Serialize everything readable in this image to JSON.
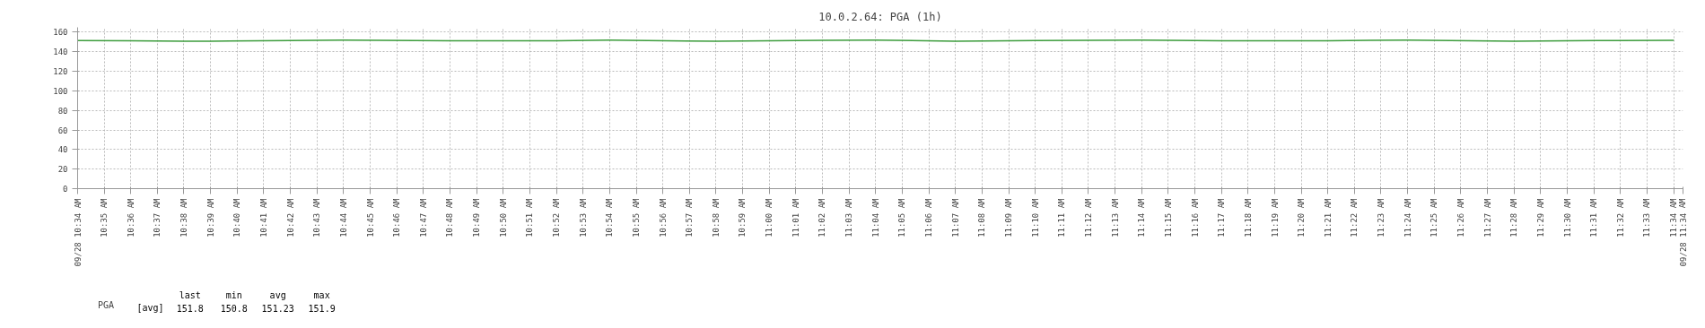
{
  "chart_data": {
    "type": "line",
    "title": "10.0.2.64: PGA (1h)",
    "x": [
      10.5667,
      10.6,
      10.6333,
      10.65,
      10.7,
      10.7333,
      10.8,
      10.8667,
      10.9,
      10.9667,
      11.0,
      11.0333,
      11.0667,
      11.1167,
      11.1667,
      11.2333,
      11.2833,
      11.35,
      11.4,
      11.4667,
      11.5,
      11.5333,
      11.5667
    ],
    "series": [
      {
        "name": "PGA",
        "color": "#3c9c3c",
        "values": [
          151.5,
          151.2,
          150.8,
          150.9,
          151.5,
          151.9,
          151.3,
          151.3,
          151.9,
          150.8,
          151.2,
          151.8,
          151.9,
          150.8,
          151.5,
          151.9,
          151.3,
          151.3,
          151.9,
          150.8,
          151.3,
          151.5,
          151.8
        ]
      }
    ],
    "xlim": [
      10.5667,
      11.5725
    ],
    "xticks": [
      {
        "value": 10.5667,
        "label": "09/28 10:34 AM"
      },
      {
        "value": 10.5833,
        "label": "10:35 AM"
      },
      {
        "value": 10.6,
        "label": "10:36 AM"
      },
      {
        "value": 10.6167,
        "label": "10:37 AM"
      },
      {
        "value": 10.6333,
        "label": "10:38 AM"
      },
      {
        "value": 10.65,
        "label": "10:39 AM"
      },
      {
        "value": 10.6667,
        "label": "10:40 AM"
      },
      {
        "value": 10.6833,
        "label": "10:41 AM"
      },
      {
        "value": 10.7,
        "label": "10:42 AM"
      },
      {
        "value": 10.7167,
        "label": "10:43 AM"
      },
      {
        "value": 10.7333,
        "label": "10:44 AM"
      },
      {
        "value": 10.75,
        "label": "10:45 AM"
      },
      {
        "value": 10.7667,
        "label": "10:46 AM"
      },
      {
        "value": 10.7833,
        "label": "10:47 AM"
      },
      {
        "value": 10.8,
        "label": "10:48 AM"
      },
      {
        "value": 10.8167,
        "label": "10:49 AM"
      },
      {
        "value": 10.8333,
        "label": "10:50 AM"
      },
      {
        "value": 10.85,
        "label": "10:51 AM"
      },
      {
        "value": 10.8667,
        "label": "10:52 AM"
      },
      {
        "value": 10.8833,
        "label": "10:53 AM"
      },
      {
        "value": 10.9,
        "label": "10:54 AM"
      },
      {
        "value": 10.9167,
        "label": "10:55 AM"
      },
      {
        "value": 10.9333,
        "label": "10:56 AM"
      },
      {
        "value": 10.95,
        "label": "10:57 AM"
      },
      {
        "value": 10.9667,
        "label": "10:58 AM"
      },
      {
        "value": 10.9833,
        "label": "10:59 AM"
      },
      {
        "value": 11.0,
        "label": "11:00 AM"
      },
      {
        "value": 11.0167,
        "label": "11:01 AM"
      },
      {
        "value": 11.0333,
        "label": "11:02 AM"
      },
      {
        "value": 11.05,
        "label": "11:03 AM"
      },
      {
        "value": 11.0667,
        "label": "11:04 AM"
      },
      {
        "value": 11.0833,
        "label": "11:05 AM"
      },
      {
        "value": 11.1,
        "label": "11:06 AM"
      },
      {
        "value": 11.1167,
        "label": "11:07 AM"
      },
      {
        "value": 11.1333,
        "label": "11:08 AM"
      },
      {
        "value": 11.15,
        "label": "11:09 AM"
      },
      {
        "value": 11.1667,
        "label": "11:10 AM"
      },
      {
        "value": 11.1833,
        "label": "11:11 AM"
      },
      {
        "value": 11.2,
        "label": "11:12 AM"
      },
      {
        "value": 11.2167,
        "label": "11:13 AM"
      },
      {
        "value": 11.2333,
        "label": "11:14 AM"
      },
      {
        "value": 11.25,
        "label": "11:15 AM"
      },
      {
        "value": 11.2667,
        "label": "11:16 AM"
      },
      {
        "value": 11.2833,
        "label": "11:17 AM"
      },
      {
        "value": 11.3,
        "label": "11:18 AM"
      },
      {
        "value": 11.3167,
        "label": "11:19 AM"
      },
      {
        "value": 11.3333,
        "label": "11:20 AM"
      },
      {
        "value": 11.35,
        "label": "11:21 AM"
      },
      {
        "value": 11.3667,
        "label": "11:22 AM"
      },
      {
        "value": 11.3833,
        "label": "11:23 AM"
      },
      {
        "value": 11.4,
        "label": "11:24 AM"
      },
      {
        "value": 11.4167,
        "label": "11:25 AM"
      },
      {
        "value": 11.4333,
        "label": "11:26 AM"
      },
      {
        "value": 11.45,
        "label": "11:27 AM"
      },
      {
        "value": 11.4667,
        "label": "11:28 AM"
      },
      {
        "value": 11.4833,
        "label": "11:29 AM"
      },
      {
        "value": 11.5,
        "label": "11:30 AM"
      },
      {
        "value": 11.5167,
        "label": "11:31 AM"
      },
      {
        "value": 11.5333,
        "label": "11:32 AM"
      },
      {
        "value": 11.55,
        "label": "11:33 AM"
      },
      {
        "value": 11.5667,
        "label": "11:34 AM"
      },
      {
        "value": 11.5725,
        "label": "09/28 11:34 AM"
      }
    ],
    "ylim": [
      0,
      165
    ],
    "yticks": [
      0,
      20,
      40,
      60,
      80,
      100,
      120,
      140,
      160
    ],
    "grid": true,
    "legend": "bottom left",
    "annotations": [
      "[avg]",
      "last",
      "min",
      "avg",
      "max",
      "151.8",
      "150.8",
      "151.23",
      "151.9"
    ]
  }
}
